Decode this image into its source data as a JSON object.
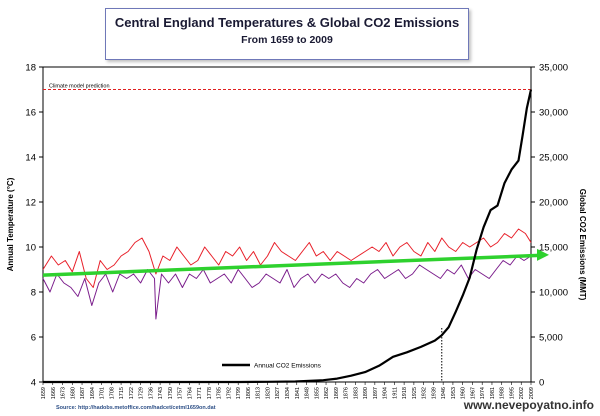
{
  "title": "Central England Temperatures & Global CO2 Emissions",
  "subtitle": "From 1659 to 2009",
  "source_note": "Source: http://hadobs.metoffice.com/hadcet/cetml1659on.dat",
  "watermark": "www.nevероyatno.info",
  "colors": {
    "temperature_red": "#e8202a",
    "temperature_purple": "#7b1e8c",
    "co2": "#000000",
    "trend": "#2ed12e",
    "prediction": "#e02020"
  },
  "chart_data": {
    "type": "line",
    "x_range": [
      1659,
      2009
    ],
    "y_left": {
      "label": "Annual Temperature (°C)",
      "range": [
        4,
        18
      ],
      "ticks": [
        4,
        6,
        8,
        10,
        12,
        14,
        16,
        18
      ]
    },
    "y_right": {
      "label": "Global CO2 Emissions (MMT)",
      "range": [
        0,
        35000
      ],
      "ticks": [
        "0",
        "5,000",
        "10,000",
        "15,000",
        "20,000",
        "25,000",
        "30,000",
        "35,000"
      ]
    },
    "x_tick_labels": [
      "1659",
      "1666",
      "1673",
      "1680",
      "1687",
      "1694",
      "1701",
      "1708",
      "1715",
      "1722",
      "1729",
      "1736",
      "1743",
      "1750",
      "1757",
      "1764",
      "1771",
      "1778",
      "1785",
      "1792",
      "1799",
      "1806",
      "1813",
      "1820",
      "1827",
      "1834",
      "1841",
      "1848",
      "1855",
      "1862",
      "1869",
      "1876",
      "1883",
      "1890",
      "1897",
      "1904",
      "1911",
      "1918",
      "1925",
      "1932",
      "1939",
      "1946",
      "1953",
      "1960",
      "1967",
      "1974",
      "1981",
      "1988",
      "1995",
      "2002",
      "2009"
    ],
    "reference_line": {
      "label": "Climate model prediction",
      "value": 17.0
    },
    "trend": {
      "start": [
        1659,
        8.75
      ],
      "end": [
        2009,
        9.65
      ]
    },
    "vertical_marker_year": 1945,
    "temperature": {
      "red_years": [
        1659,
        1665,
        1670,
        1675,
        1680,
        1685,
        1690,
        1695,
        1700,
        1705,
        1710,
        1715,
        1720,
        1725,
        1730,
        1735,
        1740,
        1745,
        1750,
        1755,
        1760,
        1765,
        1770,
        1775,
        1780,
        1785,
        1790,
        1795,
        1800,
        1805,
        1810,
        1815,
        1820,
        1825,
        1830,
        1835,
        1840,
        1845,
        1850,
        1855,
        1860,
        1865,
        1870,
        1875,
        1880,
        1885,
        1890,
        1895,
        1900,
        1905,
        1910,
        1915,
        1920,
        1925,
        1930,
        1935,
        1940,
        1945,
        1950,
        1955,
        1960,
        1965,
        1970,
        1975,
        1980,
        1985,
        1990,
        1995,
        2000,
        2005,
        2009
      ],
      "red_values": [
        9.0,
        9.6,
        9.2,
        9.4,
        8.9,
        9.8,
        8.6,
        8.2,
        9.4,
        9.0,
        9.2,
        9.6,
        9.8,
        10.2,
        10.4,
        9.8,
        8.8,
        9.6,
        9.4,
        10.0,
        9.6,
        9.2,
        9.4,
        10.0,
        9.6,
        9.2,
        9.8,
        9.6,
        10.0,
        9.4,
        9.8,
        9.2,
        9.6,
        10.2,
        9.8,
        9.6,
        9.4,
        9.8,
        10.2,
        9.6,
        9.8,
        9.4,
        9.8,
        9.6,
        9.4,
        9.6,
        9.8,
        10.0,
        9.8,
        10.2,
        9.6,
        10.0,
        10.2,
        9.8,
        9.6,
        10.2,
        9.8,
        10.4,
        10.0,
        9.8,
        10.2,
        10.0,
        10.2,
        10.4,
        10.0,
        10.2,
        10.6,
        10.4,
        10.8,
        10.6,
        10.2
      ],
      "purple_years": [
        1659,
        1664,
        1669,
        1674,
        1679,
        1684,
        1689,
        1694,
        1699,
        1704,
        1709,
        1714,
        1719,
        1724,
        1729,
        1734,
        1739,
        1740,
        1744,
        1749,
        1754,
        1759,
        1764,
        1769,
        1774,
        1779,
        1784,
        1789,
        1794,
        1799,
        1804,
        1809,
        1814,
        1819,
        1824,
        1829,
        1834,
        1839,
        1844,
        1849,
        1854,
        1859,
        1864,
        1869,
        1874,
        1879,
        1884,
        1889,
        1894,
        1899,
        1904,
        1909,
        1914,
        1919,
        1924,
        1929,
        1934,
        1939,
        1944,
        1949,
        1954,
        1959,
        1964,
        1969,
        1974,
        1979,
        1984,
        1989,
        1994,
        1999,
        2004,
        2009
      ],
      "purple_values": [
        8.6,
        8.0,
        8.8,
        8.4,
        8.2,
        7.8,
        8.6,
        7.4,
        8.4,
        8.8,
        8.0,
        8.8,
        8.6,
        8.8,
        8.4,
        9.0,
        8.6,
        6.8,
        8.8,
        8.4,
        8.8,
        8.2,
        8.8,
        8.6,
        9.0,
        8.4,
        8.6,
        8.8,
        8.4,
        9.0,
        8.6,
        8.2,
        8.4,
        8.8,
        8.6,
        8.4,
        9.0,
        8.2,
        8.6,
        8.8,
        8.4,
        8.8,
        8.6,
        8.8,
        8.4,
        8.2,
        8.6,
        8.4,
        8.8,
        9.0,
        8.6,
        8.8,
        9.0,
        8.6,
        8.8,
        9.2,
        9.0,
        8.8,
        8.6,
        9.0,
        8.8,
        9.2,
        8.6,
        9.0,
        8.8,
        8.6,
        9.0,
        9.4,
        9.2,
        9.6,
        9.4,
        9.6
      ]
    },
    "co2_series": {
      "name": "Annual CO2 Emissions",
      "years": [
        1659,
        1700,
        1750,
        1800,
        1820,
        1840,
        1860,
        1870,
        1880,
        1890,
        1900,
        1910,
        1920,
        1930,
        1940,
        1945,
        1950,
        1955,
        1960,
        1965,
        1970,
        1975,
        1980,
        1985,
        1990,
        1995,
        2000,
        2003,
        2006,
        2009
      ],
      "values": [
        0,
        0,
        0,
        0,
        20,
        60,
        200,
        380,
        700,
        1100,
        1800,
        2800,
        3300,
        3900,
        4600,
        5200,
        6100,
        7800,
        9600,
        11600,
        14700,
        17200,
        19100,
        19600,
        22100,
        23600,
        24600,
        27400,
        30400,
        32500
      ]
    }
  }
}
